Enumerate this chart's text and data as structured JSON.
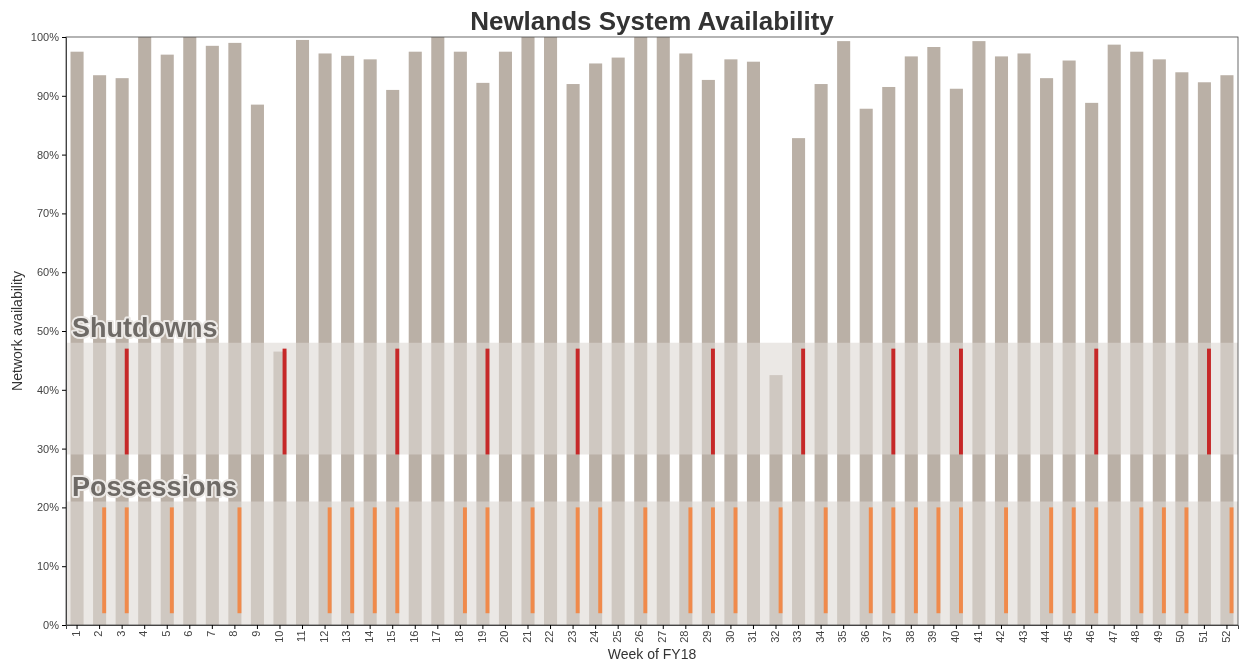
{
  "chart_data": {
    "type": "bar",
    "title": "Newlands System Availability",
    "xlabel": "Week of FY18",
    "ylabel": "Network availability",
    "categories": [
      "1",
      "2",
      "3",
      "4",
      "5",
      "6",
      "7",
      "8",
      "9",
      "10",
      "11",
      "12",
      "13",
      "14",
      "15",
      "16",
      "17",
      "18",
      "19",
      "20",
      "21",
      "22",
      "23",
      "24",
      "25",
      "26",
      "27",
      "28",
      "29",
      "30",
      "31",
      "32",
      "33",
      "34",
      "35",
      "36",
      "37",
      "38",
      "39",
      "40",
      "41",
      "42",
      "43",
      "44",
      "45",
      "46",
      "47",
      "48",
      "49",
      "50",
      "51",
      "52"
    ],
    "series": [
      {
        "color": "#bab0a6",
        "values": [
          97.5,
          93.5,
          93,
          100,
          97,
          100,
          98.5,
          99,
          88.5,
          46.5,
          99.5,
          97.2,
          96.8,
          96.2,
          91,
          97.5,
          100,
          97.5,
          92.2,
          97.5,
          100,
          100,
          92,
          95.5,
          96.5,
          100,
          100,
          97.2,
          92.7,
          96.2,
          95.8,
          42.5,
          82.8,
          92,
          99.3,
          87.8,
          91.5,
          96.7,
          98.3,
          91.2,
          99.3,
          96.7,
          97.2,
          93,
          96,
          88.8,
          98.7,
          97.5,
          96.2,
          94,
          92.3,
          93.5
        ]
      },
      {
        "color": "#c62828",
        "base": [
          null,
          null,
          29,
          null,
          null,
          null,
          null,
          null,
          null,
          29,
          null,
          null,
          null,
          null,
          29,
          null,
          null,
          null,
          29,
          null,
          null,
          null,
          29,
          null,
          null,
          null,
          null,
          null,
          29,
          null,
          null,
          null,
          29,
          null,
          null,
          null,
          29,
          null,
          null,
          29,
          null,
          null,
          null,
          null,
          null,
          29,
          null,
          null,
          null,
          null,
          29,
          null
        ],
        "values": [
          null,
          null,
          18,
          null,
          null,
          null,
          null,
          null,
          null,
          18,
          null,
          null,
          null,
          null,
          18,
          null,
          null,
          null,
          18,
          null,
          null,
          null,
          18,
          null,
          null,
          null,
          null,
          null,
          18,
          null,
          null,
          null,
          18,
          null,
          null,
          null,
          18,
          null,
          null,
          18,
          null,
          null,
          null,
          null,
          null,
          18,
          null,
          null,
          null,
          null,
          18,
          null
        ]
      },
      {
        "color": "#f08a4b",
        "base": [
          null,
          2,
          2,
          null,
          2,
          null,
          null,
          2,
          null,
          null,
          null,
          2,
          2,
          2,
          2,
          null,
          null,
          2,
          2,
          null,
          2,
          null,
          2,
          2,
          null,
          2,
          null,
          2,
          2,
          2,
          null,
          2,
          null,
          2,
          null,
          2,
          2,
          2,
          2,
          2,
          null,
          2,
          null,
          2,
          2,
          2,
          null,
          2,
          2,
          2,
          null,
          2
        ],
        "values": [
          null,
          18,
          18,
          null,
          18,
          null,
          null,
          18,
          null,
          null,
          null,
          18,
          18,
          18,
          18,
          null,
          null,
          18,
          18,
          null,
          18,
          null,
          18,
          18,
          null,
          18,
          null,
          18,
          18,
          18,
          null,
          18,
          null,
          18,
          null,
          18,
          18,
          18,
          18,
          18,
          null,
          18,
          null,
          18,
          18,
          18,
          null,
          18,
          18,
          18,
          null,
          18
        ]
      }
    ],
    "ylim": [
      0,
      100
    ],
    "yticks": [
      {
        "value": 0,
        "label": "0%"
      },
      {
        "value": 10,
        "label": "10%"
      },
      {
        "value": 20,
        "label": "20%"
      },
      {
        "value": 30,
        "label": "30%"
      },
      {
        "value": 40,
        "label": "40%"
      },
      {
        "value": 50,
        "label": "50%"
      },
      {
        "value": 60,
        "label": "60%"
      },
      {
        "value": 70,
        "label": "70%"
      },
      {
        "value": 80,
        "label": "80%"
      },
      {
        "value": 90,
        "label": "90%"
      },
      {
        "value": 100,
        "label": "100%"
      }
    ],
    "bands": [
      {
        "axis": "y",
        "from": 29,
        "to": 48,
        "label": "Shutdowns",
        "color": "#ddd8d3"
      },
      {
        "axis": "y",
        "from": 0,
        "to": 21,
        "label": "Possessions",
        "color": "#ddd8d3"
      }
    ],
    "grid": false
  }
}
